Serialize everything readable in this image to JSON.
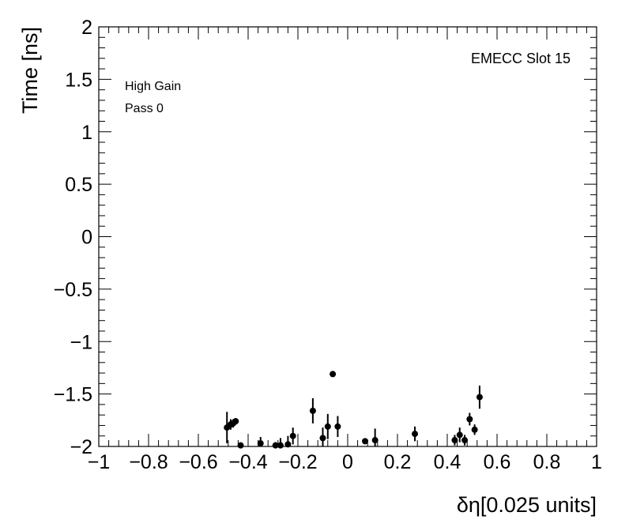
{
  "chart_data": {
    "type": "scatter",
    "title": "",
    "xlabel": "δη[0.025 units]",
    "ylabel": "Time [ns]",
    "xlim": [
      -1,
      1
    ],
    "ylim": [
      -2,
      2
    ],
    "x_ticks": [
      -1,
      -0.8,
      -0.6,
      -0.4,
      -0.2,
      0,
      0.2,
      0.4,
      0.6,
      0.8,
      1
    ],
    "x_tick_labels": [
      "−1",
      "−0.8",
      "−0.6",
      "−0.4",
      "−0.2",
      "0",
      "0.2",
      "0.4",
      "0.6",
      "0.8",
      "1"
    ],
    "y_ticks": [
      -2,
      -1.5,
      -1,
      -0.5,
      0,
      0.5,
      1,
      1.5,
      2
    ],
    "y_tick_labels": [
      "−2",
      "−1.5",
      "−1",
      "−0.5",
      "0",
      "0.5",
      "1",
      "1.5",
      "2"
    ],
    "grid": false,
    "annotations": {
      "gain": "High Gain",
      "pass": "Pass 0",
      "slot": "EMECC Slot 15"
    },
    "series": [
      {
        "points": [
          {
            "x": -0.485,
            "y": -1.82,
            "err": 0.15
          },
          {
            "x": -0.47,
            "y": -1.79,
            "err": 0.05
          },
          {
            "x": -0.46,
            "y": -1.78,
            "err": 0.04
          },
          {
            "x": -0.45,
            "y": -1.76,
            "err": 0.03
          },
          {
            "x": -0.43,
            "y": -1.99,
            "err": 0.02
          },
          {
            "x": -0.35,
            "y": -1.97,
            "err": 0.06
          },
          {
            "x": -0.29,
            "y": -1.99,
            "err": 0.03
          },
          {
            "x": -0.27,
            "y": -1.99,
            "err": 0.07
          },
          {
            "x": -0.24,
            "y": -1.98,
            "err": 0.08
          },
          {
            "x": -0.22,
            "y": -1.9,
            "err": 0.08
          },
          {
            "x": -0.14,
            "y": -1.66,
            "err": 0.12
          },
          {
            "x": -0.1,
            "y": -1.92,
            "err": 0.1
          },
          {
            "x": -0.08,
            "y": -1.81,
            "err": 0.12
          },
          {
            "x": -0.06,
            "y": -1.31,
            "err": 0.02
          },
          {
            "x": -0.04,
            "y": -1.81,
            "err": 0.1
          },
          {
            "x": 0.07,
            "y": -1.95,
            "err": 0.02
          },
          {
            "x": 0.11,
            "y": -1.94,
            "err": 0.11
          },
          {
            "x": 0.27,
            "y": -1.88,
            "err": 0.07
          },
          {
            "x": 0.43,
            "y": -1.94,
            "err": 0.05
          },
          {
            "x": 0.45,
            "y": -1.89,
            "err": 0.07
          },
          {
            "x": 0.47,
            "y": -1.94,
            "err": 0.05
          },
          {
            "x": 0.49,
            "y": -1.74,
            "err": 0.06
          },
          {
            "x": 0.51,
            "y": -1.84,
            "err": 0.05
          },
          {
            "x": 0.53,
            "y": -1.53,
            "err": 0.11
          }
        ]
      }
    ]
  }
}
